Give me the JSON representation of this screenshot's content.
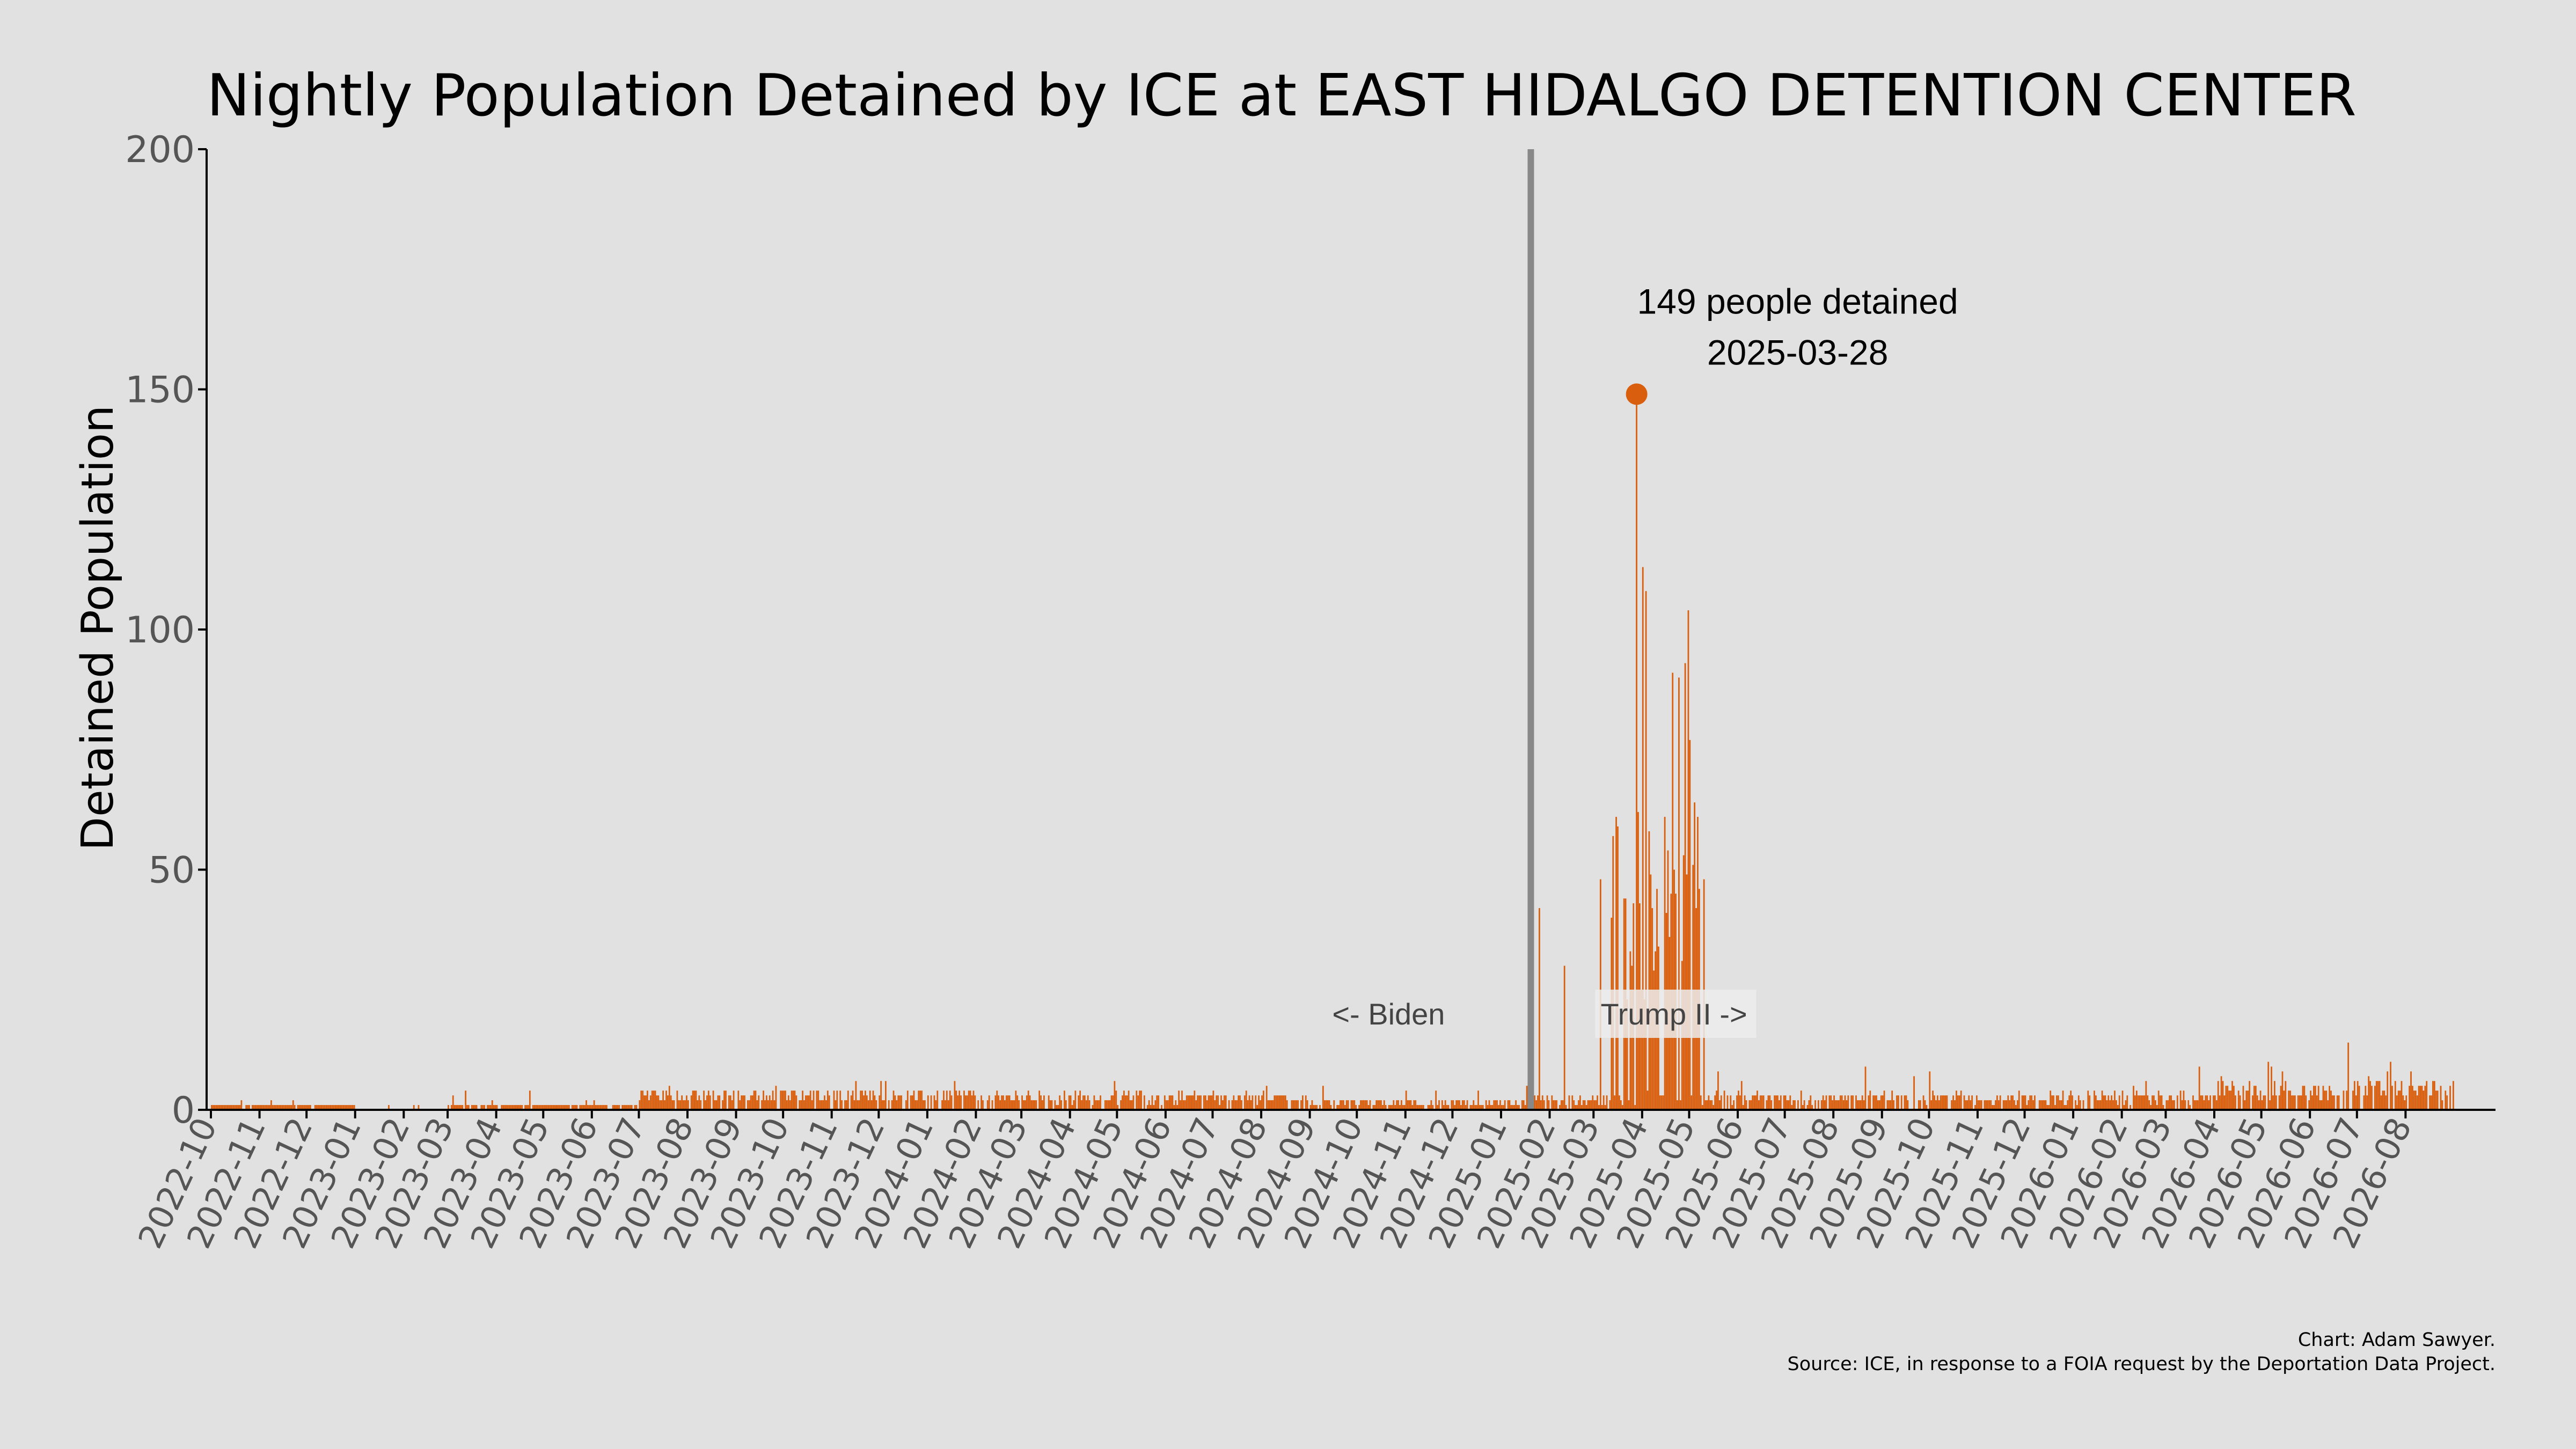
{
  "chart_data": {
    "type": "bar",
    "title": "Nightly Population Detained by ICE at EAST HIDALGO DETENTION CENTER",
    "xlabel": "",
    "ylabel": "Detained Population",
    "ylim": [
      0,
      200
    ],
    "y_ticks": [
      0,
      50,
      100,
      150,
      200
    ],
    "x_start": "2022-10-01",
    "x_end": "2026-08-31",
    "x_tick_labels": [
      "2022-10",
      "2022-11",
      "2022-12",
      "2023-01",
      "2023-02",
      "2023-03",
      "2023-04",
      "2023-05",
      "2023-06",
      "2023-07",
      "2023-08",
      "2023-09",
      "2023-10",
      "2023-11",
      "2023-12",
      "2024-01",
      "2024-02",
      "2024-03",
      "2024-04",
      "2024-05",
      "2024-06",
      "2024-07",
      "2024-08",
      "2024-09",
      "2024-10",
      "2024-11",
      "2024-12",
      "2025-01",
      "2025-02",
      "2025-03",
      "2025-04",
      "2025-05",
      "2025-06",
      "2025-07",
      "2025-08",
      "2025-09",
      "2025-10",
      "2025-11",
      "2025-12",
      "2026-01",
      "2026-02",
      "2026-03",
      "2026-04",
      "2026-05",
      "2026-06",
      "2026-07",
      "2026-08"
    ],
    "bar_color": "#d95f0e",
    "grid": false,
    "series": [
      {
        "values_by_period": [
          {
            "from": "2022-10-01",
            "to": "2022-12-31",
            "typical": 1,
            "max": 3
          },
          {
            "from": "2023-01-01",
            "to": "2023-02-28",
            "typical": 0.3,
            "max": 2
          },
          {
            "from": "2023-03-01",
            "to": "2023-06-30",
            "typical": 1,
            "max": 4
          },
          {
            "from": "2023-07-01",
            "to": "2024-01-31",
            "typical": 3,
            "max": 7
          },
          {
            "from": "2024-02-01",
            "to": "2024-08-31",
            "typical": 2.5,
            "max": 6
          },
          {
            "from": "2024-09-01",
            "to": "2025-01-20",
            "typical": 1.5,
            "max": 5
          },
          {
            "from": "2025-01-21",
            "to": "2025-03-10",
            "typical": 2,
            "max": 48
          },
          {
            "from": "2025-03-11",
            "to": "2025-05-10",
            "typical": 40,
            "max": 149
          },
          {
            "from": "2025-05-11",
            "to": "2026-03-31",
            "typical": 2.5,
            "max": 10
          },
          {
            "from": "2026-04-01",
            "to": "2026-08-31",
            "typical": 4,
            "max": 14
          }
        ],
        "notable_points": [
          {
            "x": "2025-02-10",
            "y": 30
          },
          {
            "x": "2025-03-05",
            "y": 48
          },
          {
            "x": "2025-03-12",
            "y": 40
          },
          {
            "x": "2025-03-28",
            "y": 149
          },
          {
            "x": "2025-04-01",
            "y": 113
          },
          {
            "x": "2025-04-03",
            "y": 108
          },
          {
            "x": "2025-04-06",
            "y": 49
          },
          {
            "x": "2025-04-10",
            "y": 46
          },
          {
            "x": "2025-04-20",
            "y": 91
          },
          {
            "x": "2025-04-24",
            "y": 90
          },
          {
            "x": "2025-04-28",
            "y": 93
          },
          {
            "x": "2025-04-30",
            "y": 104
          },
          {
            "x": "2025-05-01",
            "y": 77
          },
          {
            "x": "2025-05-05",
            "y": 42
          },
          {
            "x": "2026-06-25",
            "y": 14
          }
        ]
      }
    ],
    "reference_line": {
      "x": "2025-01-20"
    },
    "region_labels": {
      "left": "<- Biden",
      "right": "Trump II ->"
    },
    "peak": {
      "x": "2025-03-28",
      "y": 149,
      "label_line1": "149 people detained",
      "label_line2": "2025-03-28"
    },
    "credit": "Chart: Adam Sawyer.",
    "source": "Source: ICE, in response to a FOIA request by the Deportation Data Project."
  }
}
